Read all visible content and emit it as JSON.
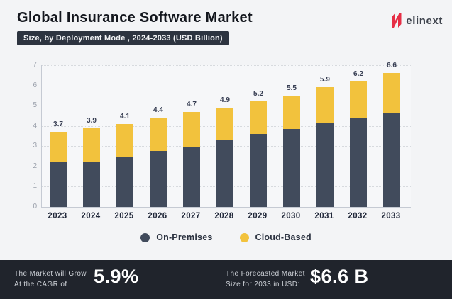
{
  "header": {
    "title": "Global Insurance Software Market",
    "subtitle_badge": "Size, by Deployment Mode , 2024-2033 (USD Billion)",
    "brand": {
      "logo_text": "elinext",
      "logo_color": "#e62e45",
      "logo_text_color": "#3e434d"
    }
  },
  "chart_data": {
    "type": "bar",
    "stacked": true,
    "title": "Global Insurance Software Market",
    "subtitle": "Size, by Deployment Mode , 2024-2033 (USD Billion)",
    "categories": [
      "2023",
      "2024",
      "2025",
      "2026",
      "2027",
      "2028",
      "2029",
      "2030",
      "2031",
      "2032",
      "2033"
    ],
    "series": [
      {
        "name": "On-Premises",
        "color": "#414b5c",
        "values": [
          2.2,
          2.2,
          2.5,
          2.75,
          2.95,
          3.3,
          3.6,
          3.85,
          4.15,
          4.4,
          4.65
        ]
      },
      {
        "name": "Cloud-Based",
        "color": "#f2c23d",
        "values": [
          1.5,
          1.7,
          1.6,
          1.65,
          1.75,
          1.6,
          1.6,
          1.65,
          1.75,
          1.8,
          1.95
        ]
      }
    ],
    "totals": [
      3.7,
      3.9,
      4.1,
      4.4,
      4.7,
      4.9,
      5.2,
      5.5,
      5.9,
      6.2,
      6.6
    ],
    "total_labels": [
      "3.7",
      "3.9",
      "4.1",
      "4.4",
      "4.7",
      "4.9",
      "5.2",
      "5.5",
      "5.9",
      "6.2",
      "6.6"
    ],
    "xlabel": "",
    "ylabel": "",
    "ylim": [
      0,
      7
    ],
    "yticks": [
      0,
      1,
      2,
      3,
      4,
      5,
      6,
      7
    ],
    "grid": "dotted-horizontal",
    "legend_position": "bottom"
  },
  "legend": {
    "items": [
      {
        "label": "On-Premises",
        "color": "#414b5c"
      },
      {
        "label": "Cloud-Based",
        "color": "#f2c23d"
      }
    ]
  },
  "footer": {
    "cagr": {
      "caption_line1": "The Market will Grow",
      "caption_line2": "At the CAGR of",
      "value": "5.9%"
    },
    "forecast": {
      "caption_line1": "The Forecasted Market",
      "caption_line2": "Size for 2033 in USD:",
      "value": "$6.6 B"
    }
  }
}
